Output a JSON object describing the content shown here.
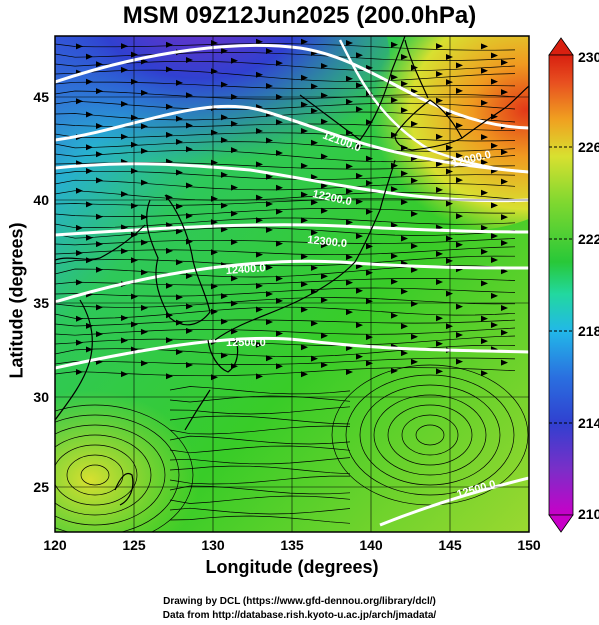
{
  "title": "MSM 09Z12Jun2025 (200.0hPa)",
  "axes": {
    "xlabel": "Longitude (degrees)",
    "ylabel": "Latitude  (degrees)",
    "x_ticks": [
      "120",
      "125",
      "130",
      "135",
      "140",
      "145",
      "150"
    ],
    "y_ticks": [
      "25",
      "30",
      "35",
      "40",
      "45"
    ],
    "xlim": [
      120,
      150
    ],
    "ylim": [
      22.4,
      47.6
    ]
  },
  "contour_labels": [
    "12100.0",
    "12200.0",
    "12300.0",
    "12400.0",
    "12500.0",
    "12000.0",
    "12500.0"
  ],
  "colorbar": {
    "ticks": [
      "230",
      "226",
      "222",
      "218",
      "214",
      "210"
    ],
    "min": 210,
    "max": 230,
    "colors": [
      "#c800c8",
      "#7a2fc8",
      "#3040d0",
      "#2a70e0",
      "#22b8e8",
      "#22d8a0",
      "#28c838",
      "#80d830",
      "#d8e030",
      "#f0a020",
      "#e85020",
      "#d82010"
    ]
  },
  "credits": {
    "line1": "Drawing by DCL (https://www.gfd-dennou.org/library/dcl/)",
    "line2": "Data from http://database.rish.kyoto-u.ac.jp/arch/jmadata/"
  },
  "chart_data": {
    "type": "heatmap",
    "title": "MSM 09Z12Jun2025 (200.0hPa)",
    "xlabel": "Longitude (degrees)",
    "ylabel": "Latitude  (degrees)",
    "xlim": [
      120,
      150
    ],
    "ylim": [
      22.4,
      47.6
    ],
    "x_ticks": [
      120,
      125,
      130,
      135,
      140,
      145,
      150
    ],
    "y_ticks": [
      25,
      30,
      35,
      40,
      45
    ],
    "colorbar_range": [
      210,
      230
    ],
    "colorbar_ticks": [
      210,
      214,
      218,
      222,
      226,
      230
    ],
    "temperature_samples": [
      {
        "lon": 133,
        "lat": 46,
        "value": 211
      },
      {
        "lon": 128,
        "lat": 43,
        "value": 215
      },
      {
        "lon": 122,
        "lat": 42,
        "value": 216
      },
      {
        "lon": 148,
        "lat": 43,
        "value": 228
      },
      {
        "lon": 138,
        "lat": 35,
        "value": 222
      },
      {
        "lon": 124,
        "lat": 26,
        "value": 224
      },
      {
        "lon": 144,
        "lat": 28,
        "value": 222
      }
    ],
    "height_contours": [
      {
        "label": "12000.0",
        "lat_at_150": 42.4
      },
      {
        "label": "12100.0",
        "lat_at_150": 41.0
      },
      {
        "label": "12200.0",
        "lat_at_150": 39.8
      },
      {
        "label": "12300.0",
        "lat_at_150": 37.6
      },
      {
        "label": "12400.0",
        "lat_at_150": 34.2
      },
      {
        "label": "12500.0",
        "lat_at_150": 29.4
      }
    ],
    "grid": true
  }
}
